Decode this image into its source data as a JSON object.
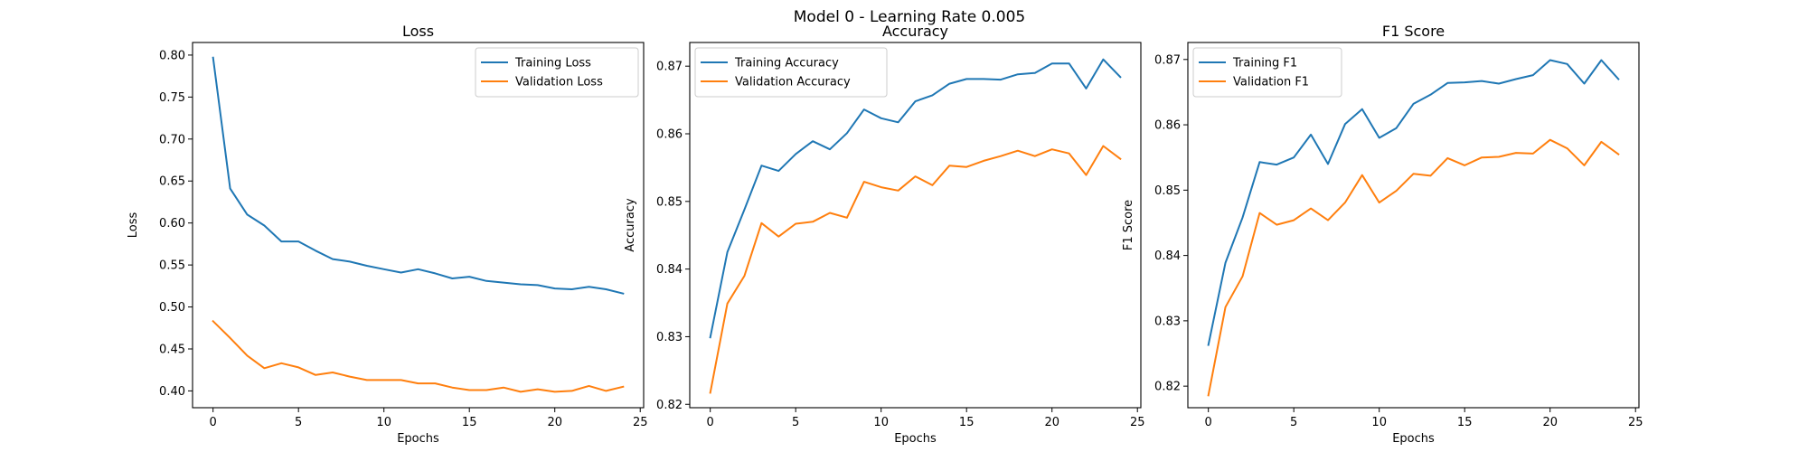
{
  "figure": {
    "suptitle": "Model 0 - Learning Rate 0.005"
  },
  "chart_data": [
    {
      "type": "line",
      "title": "Loss",
      "xlabel": "Epochs",
      "ylabel": "Loss",
      "x": [
        0,
        1,
        2,
        3,
        4,
        5,
        6,
        7,
        8,
        9,
        10,
        11,
        12,
        13,
        14,
        15,
        16,
        17,
        18,
        19,
        20,
        21,
        22,
        23,
        24
      ],
      "xlim": [
        -1.2,
        25.2
      ],
      "ylim": [
        0.38,
        0.815
      ],
      "xticks": [
        0,
        5,
        10,
        15,
        20,
        25
      ],
      "yticks": [
        0.4,
        0.45,
        0.5,
        0.55,
        0.6,
        0.65,
        0.7,
        0.75,
        0.8
      ],
      "tick_decimals": 2,
      "legend_position": "upper right",
      "grid": false,
      "series": [
        {
          "name": "Training Loss",
          "color": "#1f77b4",
          "values": [
            0.797,
            0.641,
            0.61,
            0.597,
            0.578,
            0.578,
            0.567,
            0.557,
            0.554,
            0.549,
            0.545,
            0.541,
            0.545,
            0.54,
            0.534,
            0.536,
            0.531,
            0.529,
            0.527,
            0.526,
            0.522,
            0.521,
            0.524,
            0.521,
            0.516
          ]
        },
        {
          "name": "Validation Loss",
          "color": "#ff7f0e",
          "values": [
            0.483,
            0.463,
            0.442,
            0.427,
            0.433,
            0.428,
            0.419,
            0.422,
            0.417,
            0.413,
            0.413,
            0.413,
            0.409,
            0.409,
            0.404,
            0.401,
            0.401,
            0.404,
            0.399,
            0.402,
            0.399,
            0.4,
            0.406,
            0.4,
            0.405
          ]
        }
      ]
    },
    {
      "type": "line",
      "title": "Accuracy",
      "xlabel": "Epochs",
      "ylabel": "Accuracy",
      "x": [
        0,
        1,
        2,
        3,
        4,
        5,
        6,
        7,
        8,
        9,
        10,
        11,
        12,
        13,
        14,
        15,
        16,
        17,
        18,
        19,
        20,
        21,
        22,
        23,
        24
      ],
      "xlim": [
        -1.2,
        25.2
      ],
      "ylim": [
        0.8195,
        0.8735
      ],
      "xticks": [
        0,
        5,
        10,
        15,
        20,
        25
      ],
      "yticks": [
        0.82,
        0.83,
        0.84,
        0.85,
        0.86,
        0.87
      ],
      "tick_decimals": 2,
      "legend_position": "upper left",
      "grid": false,
      "series": [
        {
          "name": "Training Accuracy",
          "color": "#1f77b4",
          "values": [
            0.8299,
            0.8425,
            0.8488,
            0.8553,
            0.8545,
            0.857,
            0.8589,
            0.8577,
            0.8601,
            0.8636,
            0.8623,
            0.8617,
            0.8648,
            0.8657,
            0.8674,
            0.8681,
            0.8681,
            0.868,
            0.8688,
            0.869,
            0.8704,
            0.8704,
            0.8667,
            0.871,
            0.8684
          ]
        },
        {
          "name": "Validation Accuracy",
          "color": "#ff7f0e",
          "values": [
            0.8217,
            0.8349,
            0.839,
            0.8468,
            0.8448,
            0.8467,
            0.847,
            0.8483,
            0.8476,
            0.8529,
            0.8521,
            0.8516,
            0.8537,
            0.8524,
            0.8553,
            0.8551,
            0.856,
            0.8567,
            0.8575,
            0.8567,
            0.8577,
            0.8571,
            0.8539,
            0.8582,
            0.8563
          ]
        }
      ]
    },
    {
      "type": "line",
      "title": "F1 Score",
      "xlabel": "Epochs",
      "ylabel": "F1 Score",
      "x": [
        0,
        1,
        2,
        3,
        4,
        5,
        6,
        7,
        8,
        9,
        10,
        11,
        12,
        13,
        14,
        15,
        16,
        17,
        18,
        19,
        20,
        21,
        22,
        23,
        24
      ],
      "xlim": [
        -1.2,
        25.2
      ],
      "ylim": [
        0.8167,
        0.8726
      ],
      "xticks": [
        0,
        5,
        10,
        15,
        20,
        25
      ],
      "yticks": [
        0.82,
        0.83,
        0.84,
        0.85,
        0.86,
        0.87
      ],
      "tick_decimals": 2,
      "legend_position": "upper left",
      "grid": false,
      "series": [
        {
          "name": "Training F1",
          "color": "#1f77b4",
          "values": [
            0.8263,
            0.8389,
            0.8458,
            0.8543,
            0.8539,
            0.855,
            0.8585,
            0.854,
            0.8601,
            0.8624,
            0.858,
            0.8595,
            0.8632,
            0.8646,
            0.8664,
            0.8665,
            0.8667,
            0.8663,
            0.867,
            0.8676,
            0.8699,
            0.8693,
            0.8663,
            0.8699,
            0.867
          ]
        },
        {
          "name": "Validation F1",
          "color": "#ff7f0e",
          "values": [
            0.8186,
            0.8321,
            0.8368,
            0.8465,
            0.8447,
            0.8454,
            0.8472,
            0.8454,
            0.8481,
            0.8523,
            0.8481,
            0.8499,
            0.8525,
            0.8522,
            0.8549,
            0.8538,
            0.855,
            0.8551,
            0.8557,
            0.8556,
            0.8577,
            0.8564,
            0.8538,
            0.8574,
            0.8555
          ]
        }
      ]
    }
  ]
}
